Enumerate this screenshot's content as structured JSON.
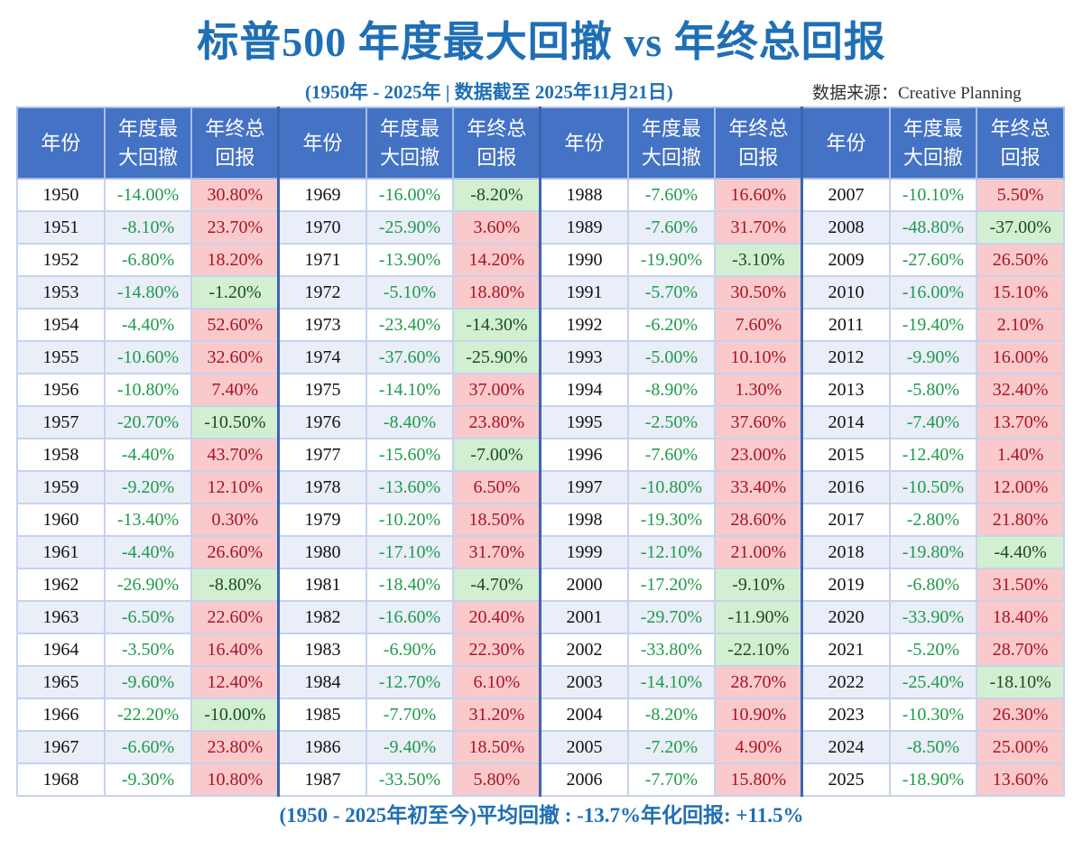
{
  "title": "标普500 年度最大回撤 vs 年终总回报",
  "subtitle": "(1950年 - 2025年 | 数据截至 2025年11月21日)",
  "source": "数据来源：Creative Planning",
  "footer": "(1950 - 2025年初至今)平均回撤 : -13.7%年化回报: +11.5%",
  "colors": {
    "header_bg": "#4472c4",
    "title": "#1f6fb5",
    "positive_bg": "#f9c9cc",
    "negative_bg": "#d3efd1",
    "drawdown_text": "#1e9a4a"
  },
  "chart_data": {
    "type": "table",
    "columns": [
      "年份",
      "年度最大回撤",
      "年终总回报"
    ],
    "rows": [
      [
        "1950",
        "-14.00%",
        "30.80%"
      ],
      [
        "1951",
        "-8.10%",
        "23.70%"
      ],
      [
        "1952",
        "-6.80%",
        "18.20%"
      ],
      [
        "1953",
        "-14.80%",
        "-1.20%"
      ],
      [
        "1954",
        "-4.40%",
        "52.60%"
      ],
      [
        "1955",
        "-10.60%",
        "32.60%"
      ],
      [
        "1956",
        "-10.80%",
        "7.40%"
      ],
      [
        "1957",
        "-20.70%",
        "-10.50%"
      ],
      [
        "1958",
        "-4.40%",
        "43.70%"
      ],
      [
        "1959",
        "-9.20%",
        "12.10%"
      ],
      [
        "1960",
        "-13.40%",
        "0.30%"
      ],
      [
        "1961",
        "-4.40%",
        "26.60%"
      ],
      [
        "1962",
        "-26.90%",
        "-8.80%"
      ],
      [
        "1963",
        "-6.50%",
        "22.60%"
      ],
      [
        "1964",
        "-3.50%",
        "16.40%"
      ],
      [
        "1965",
        "-9.60%",
        "12.40%"
      ],
      [
        "1966",
        "-22.20%",
        "-10.00%"
      ],
      [
        "1967",
        "-6.60%",
        "23.80%"
      ],
      [
        "1968",
        "-9.30%",
        "10.80%"
      ],
      [
        "1969",
        "-16.00%",
        "-8.20%"
      ],
      [
        "1970",
        "-25.90%",
        "3.60%"
      ],
      [
        "1971",
        "-13.90%",
        "14.20%"
      ],
      [
        "1972",
        "-5.10%",
        "18.80%"
      ],
      [
        "1973",
        "-23.40%",
        "-14.30%"
      ],
      [
        "1974",
        "-37.60%",
        "-25.90%"
      ],
      [
        "1975",
        "-14.10%",
        "37.00%"
      ],
      [
        "1976",
        "-8.40%",
        "23.80%"
      ],
      [
        "1977",
        "-15.60%",
        "-7.00%"
      ],
      [
        "1978",
        "-13.60%",
        "6.50%"
      ],
      [
        "1979",
        "-10.20%",
        "18.50%"
      ],
      [
        "1980",
        "-17.10%",
        "31.70%"
      ],
      [
        "1981",
        "-18.40%",
        "-4.70%"
      ],
      [
        "1982",
        "-16.60%",
        "20.40%"
      ],
      [
        "1983",
        "-6.90%",
        "22.30%"
      ],
      [
        "1984",
        "-12.70%",
        "6.10%"
      ],
      [
        "1985",
        "-7.70%",
        "31.20%"
      ],
      [
        "1986",
        "-9.40%",
        "18.50%"
      ],
      [
        "1987",
        "-33.50%",
        "5.80%"
      ],
      [
        "1988",
        "-7.60%",
        "16.60%"
      ],
      [
        "1989",
        "-7.60%",
        "31.70%"
      ],
      [
        "1990",
        "-19.90%",
        "-3.10%"
      ],
      [
        "1991",
        "-5.70%",
        "30.50%"
      ],
      [
        "1992",
        "-6.20%",
        "7.60%"
      ],
      [
        "1993",
        "-5.00%",
        "10.10%"
      ],
      [
        "1994",
        "-8.90%",
        "1.30%"
      ],
      [
        "1995",
        "-2.50%",
        "37.60%"
      ],
      [
        "1996",
        "-7.60%",
        "23.00%"
      ],
      [
        "1997",
        "-10.80%",
        "33.40%"
      ],
      [
        "1998",
        "-19.30%",
        "28.60%"
      ],
      [
        "1999",
        "-12.10%",
        "21.00%"
      ],
      [
        "2000",
        "-17.20%",
        "-9.10%"
      ],
      [
        "2001",
        "-29.70%",
        "-11.90%"
      ],
      [
        "2002",
        "-33.80%",
        "-22.10%"
      ],
      [
        "2003",
        "-14.10%",
        "28.70%"
      ],
      [
        "2004",
        "-8.20%",
        "10.90%"
      ],
      [
        "2005",
        "-7.20%",
        "4.90%"
      ],
      [
        "2006",
        "-7.70%",
        "15.80%"
      ],
      [
        "2007",
        "-10.10%",
        "5.50%"
      ],
      [
        "2008",
        "-48.80%",
        "-37.00%"
      ],
      [
        "2009",
        "-27.60%",
        "26.50%"
      ],
      [
        "2010",
        "-16.00%",
        "15.10%"
      ],
      [
        "2011",
        "-19.40%",
        "2.10%"
      ],
      [
        "2012",
        "-9.90%",
        "16.00%"
      ],
      [
        "2013",
        "-5.80%",
        "32.40%"
      ],
      [
        "2014",
        "-7.40%",
        "13.70%"
      ],
      [
        "2015",
        "-12.40%",
        "1.40%"
      ],
      [
        "2016",
        "-10.50%",
        "12.00%"
      ],
      [
        "2017",
        "-2.80%",
        "21.80%"
      ],
      [
        "2018",
        "-19.80%",
        "-4.40%"
      ],
      [
        "2019",
        "-6.80%",
        "31.50%"
      ],
      [
        "2020",
        "-33.90%",
        "18.40%"
      ],
      [
        "2021",
        "-5.20%",
        "28.70%"
      ],
      [
        "2022",
        "-25.40%",
        "-18.10%"
      ],
      [
        "2023",
        "-10.30%",
        "26.30%"
      ],
      [
        "2024",
        "-8.50%",
        "25.00%"
      ],
      [
        "2025",
        "-18.90%",
        "13.60%"
      ]
    ]
  }
}
